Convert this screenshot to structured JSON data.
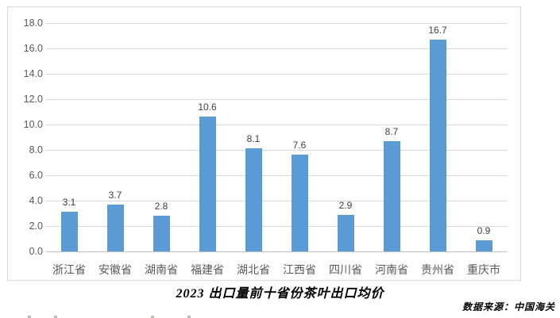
{
  "chart_data": {
    "type": "bar",
    "title": "2023 出口量前十省份茶叶出口均价",
    "source_note": "数据来源：中国海关",
    "categories": [
      "浙江省",
      "安徽省",
      "湖南省",
      "福建省",
      "湖北省",
      "江西省",
      "四川省",
      "河南省",
      "贵州省",
      "重庆市"
    ],
    "values": [
      3.1,
      3.7,
      2.8,
      10.6,
      8.1,
      7.6,
      2.9,
      8.7,
      16.7,
      0.9
    ],
    "value_labels": [
      "3.1",
      "3.7",
      "2.8",
      "10.6",
      "8.1",
      "7.6",
      "2.9",
      "8.7",
      "16.7",
      "0.9"
    ],
    "y_ticks": [
      "18.0",
      "16.0",
      "14.0",
      "12.0",
      "10.0",
      "8.0",
      "6.0",
      "4.0",
      "2.0",
      "0.0"
    ],
    "ylim": [
      0,
      18
    ],
    "y_tick_step": 2,
    "grid": true,
    "legend": "none",
    "xlabel": "",
    "ylabel": "",
    "colors": {
      "bar": "#5b9bd5",
      "gridline": "#d9d9d9",
      "axis_line": "#bfbfbf",
      "frame_border": "#d9d9d9",
      "tick_label": "#595959",
      "data_label": "#404040",
      "title_text": "#000000"
    }
  }
}
